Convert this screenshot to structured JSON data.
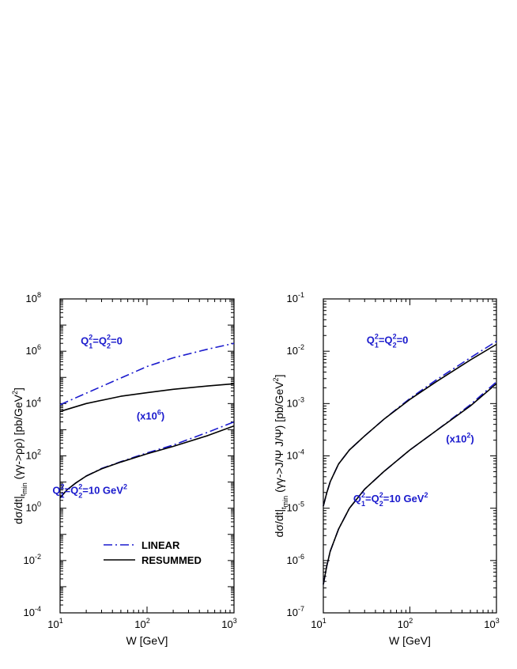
{
  "chart_data": [
    {
      "type": "line",
      "x_scale": "log",
      "y_scale": "log",
      "xlim": [
        10,
        1000
      ],
      "ylim": [
        0.0001,
        100000000
      ],
      "xlabel": "W [GeV]",
      "ylabel": {
        "prefix": "dσ/dt|",
        "sub": "t",
        "subsub": "min",
        "mid": " (γγ->ρρ) [pb/GeV",
        "sup": "2",
        "suffix": "]"
      },
      "x_ticks": [
        {
          "value": 10,
          "base": "10",
          "exp": "1"
        },
        {
          "value": 100,
          "base": "10",
          "exp": "2"
        },
        {
          "value": 1000,
          "base": "10",
          "exp": "3"
        }
      ],
      "y_ticks": [
        {
          "value": 0.0001,
          "base": "10",
          "exp": "-4"
        },
        {
          "value": 0.01,
          "base": "10",
          "exp": "-2"
        },
        {
          "value": 1,
          "base": "10",
          "exp": "0"
        },
        {
          "value": 100,
          "base": "10",
          "exp": "2"
        },
        {
          "value": 10000,
          "base": "10",
          "exp": "4"
        },
        {
          "value": 1000000,
          "base": "10",
          "exp": "6"
        },
        {
          "value": 100000000,
          "base": "10",
          "exp": "8"
        }
      ],
      "annotations": [
        {
          "id": "q0",
          "anchor_x": 30,
          "anchor_y": 1800000,
          "parts": [
            {
              "t": "Q"
            },
            {
              "t": "1",
              "sub": true
            },
            {
              "t": "2",
              "sup": true
            },
            {
              "t": "=Q"
            },
            {
              "t": "2",
              "sub": true
            },
            {
              "t": "2",
              "sup": true
            },
            {
              "t": "=0"
            }
          ]
        },
        {
          "id": "scale",
          "anchor_x": 110,
          "anchor_y": 2500,
          "parts": [
            {
              "t": "(x10"
            },
            {
              "t": "6",
              "sup": true
            },
            {
              "t": ")"
            }
          ]
        },
        {
          "id": "q10",
          "anchor_x": 22,
          "anchor_y": 3.5,
          "parts": [
            {
              "t": "Q"
            },
            {
              "t": "1",
              "sub": true
            },
            {
              "t": "2",
              "sup": true
            },
            {
              "t": "=Q"
            },
            {
              "t": "2",
              "sub": true
            },
            {
              "t": "2",
              "sup": true
            },
            {
              "t": "=10 GeV"
            },
            {
              "t": "2",
              "sup": true
            }
          ]
        }
      ],
      "legend": {
        "placement": "bottom-center",
        "entries": [
          {
            "label": "LINEAR",
            "style": "dash-dot",
            "color": "#1a1acd"
          },
          {
            "label": "RESUMMED",
            "style": "solid",
            "color": "#000000"
          }
        ]
      },
      "series": [
        {
          "group": "Q1²=Q2²=0",
          "style": "dash-dot",
          "color": "#1a1acd",
          "x": [
            10,
            20,
            50,
            100,
            200,
            500,
            1000
          ],
          "y": [
            9000,
            25000,
            95000,
            260000,
            560000,
            1200000,
            2000000
          ]
        },
        {
          "group": "Q1²=Q2²=0",
          "style": "solid",
          "color": "#000000",
          "x": [
            10,
            20,
            50,
            100,
            200,
            500,
            1000
          ],
          "y": [
            5000,
            10000,
            19000,
            26000,
            35000,
            47000,
            57000
          ]
        },
        {
          "group": "Q1²=Q2²=10 GeV² (x10⁶)",
          "style": "dash-dot",
          "color": "#1a1acd",
          "x": [
            10,
            12,
            15,
            20,
            30,
            50,
            100,
            200,
            500,
            1000
          ],
          "y": [
            2.5,
            5,
            9,
            17,
            33,
            60,
            130,
            260,
            800,
            2000
          ]
        },
        {
          "group": "Q1²=Q2²=10 GeV² (x10⁶)",
          "style": "solid",
          "color": "#000000",
          "x": [
            10,
            12,
            15,
            20,
            30,
            50,
            100,
            200,
            500,
            1000
          ],
          "y": [
            2.5,
            5,
            9,
            17,
            32,
            58,
            120,
            230,
            600,
            1400
          ]
        }
      ]
    },
    {
      "type": "line",
      "x_scale": "log",
      "y_scale": "log",
      "xlim": [
        10,
        1000
      ],
      "ylim": [
        1e-07,
        0.1
      ],
      "xlabel": "W [GeV]",
      "ylabel": {
        "prefix": "dσ/dt|",
        "sub": "t",
        "subsub": "min",
        "mid": " (γγ->J/Ψ J/Ψ) [pb/GeV",
        "sup": "2",
        "suffix": "]"
      },
      "x_ticks": [
        {
          "value": 10,
          "base": "10",
          "exp": "1"
        },
        {
          "value": 100,
          "base": "10",
          "exp": "2"
        },
        {
          "value": 1000,
          "base": "10",
          "exp": "3"
        }
      ],
      "y_ticks": [
        {
          "value": 1e-07,
          "base": "10",
          "exp": "-7"
        },
        {
          "value": 1e-06,
          "base": "10",
          "exp": "-6"
        },
        {
          "value": 1e-05,
          "base": "10",
          "exp": "-5"
        },
        {
          "value": 0.0001,
          "base": "10",
          "exp": "-4"
        },
        {
          "value": 0.001,
          "base": "10",
          "exp": "-3"
        },
        {
          "value": 0.01,
          "base": "10",
          "exp": "-2"
        },
        {
          "value": 0.1,
          "base": "10",
          "exp": "-1"
        }
      ],
      "annotations": [
        {
          "id": "q0",
          "anchor_x": 55,
          "anchor_y": 0.014,
          "parts": [
            {
              "t": "Q"
            },
            {
              "t": "1",
              "sub": true
            },
            {
              "t": "2",
              "sup": true
            },
            {
              "t": "=Q"
            },
            {
              "t": "2",
              "sub": true
            },
            {
              "t": "2",
              "sup": true
            },
            {
              "t": "=0"
            }
          ]
        },
        {
          "id": "scale",
          "anchor_x": 380,
          "anchor_y": 0.00018,
          "parts": [
            {
              "t": "(x10"
            },
            {
              "t": "2",
              "sup": true
            },
            {
              "t": ")"
            }
          ]
        },
        {
          "id": "q10",
          "anchor_x": 60,
          "anchor_y": 1.3e-05,
          "parts": [
            {
              "t": "Q"
            },
            {
              "t": "1",
              "sub": true
            },
            {
              "t": "2",
              "sup": true
            },
            {
              "t": "=Q"
            },
            {
              "t": "2",
              "sub": true
            },
            {
              "t": "2",
              "sup": true
            },
            {
              "t": "=10 GeV"
            },
            {
              "t": "2",
              "sup": true
            }
          ]
        }
      ],
      "legend": null,
      "series": [
        {
          "group": "Q1²=Q2²=0",
          "style": "dash-dot",
          "color": "#1a1acd",
          "x": [
            10,
            11,
            12,
            15,
            20,
            30,
            50,
            100,
            200,
            500,
            1000
          ],
          "y": [
            1.1e-05,
            2e-05,
            3.2e-05,
            7e-05,
            0.00013,
            0.00024,
            0.0005,
            0.00125,
            0.0028,
            0.0075,
            0.0155
          ]
        },
        {
          "group": "Q1²=Q2²=0",
          "style": "solid",
          "color": "#000000",
          "x": [
            10,
            11,
            12,
            15,
            20,
            30,
            50,
            100,
            200,
            500,
            1000
          ],
          "y": [
            1.1e-05,
            2e-05,
            3.2e-05,
            7e-05,
            0.00013,
            0.00024,
            0.0005,
            0.0012,
            0.0026,
            0.0068,
            0.0135
          ]
        },
        {
          "group": "Q1²=Q2²=10 GeV² (x10²)",
          "style": "dash-dot",
          "color": "#1a1acd",
          "x": [
            10,
            11,
            12,
            15,
            20,
            30,
            50,
            100,
            200,
            500,
            1000
          ],
          "y": [
            3.5e-07,
            8e-07,
            1.5e-06,
            4e-06,
            1e-05,
            2.3e-05,
            5e-05,
            0.00013,
            0.0003,
            0.00095,
            0.0026
          ]
        },
        {
          "group": "Q1²=Q2²=10 GeV² (x10²)",
          "style": "solid",
          "color": "#000000",
          "x": [
            10,
            11,
            12,
            15,
            20,
            30,
            50,
            100,
            200,
            500,
            1000
          ],
          "y": [
            3.5e-07,
            8e-07,
            1.5e-06,
            4e-06,
            1e-05,
            2.3e-05,
            5e-05,
            0.00013,
            0.0003,
            0.0009,
            0.0024
          ]
        }
      ]
    }
  ]
}
